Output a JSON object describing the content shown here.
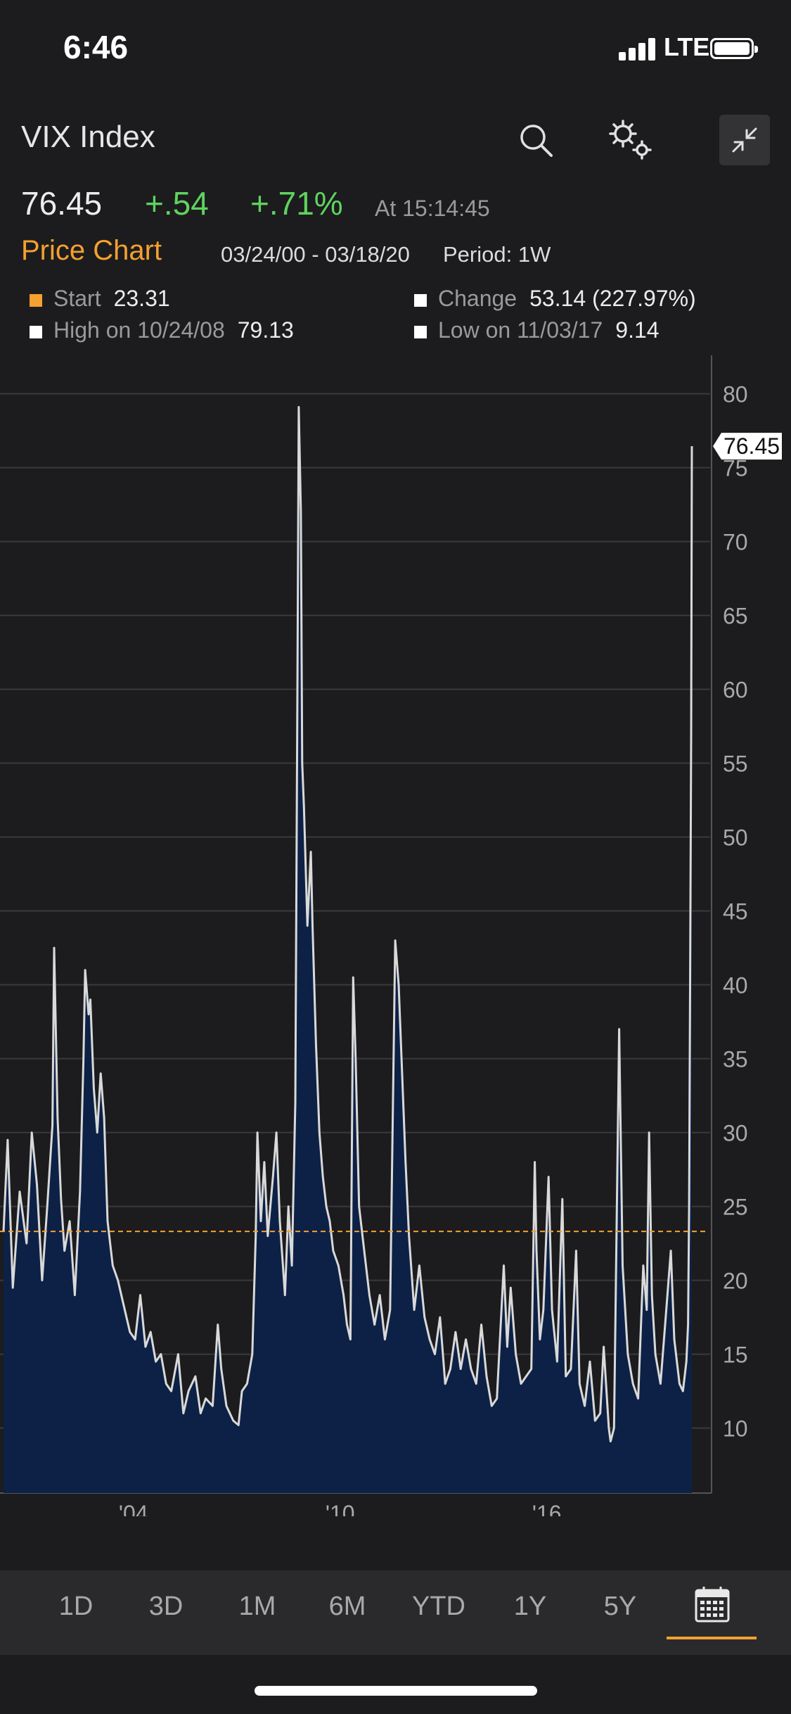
{
  "status_bar": {
    "time": "6:46",
    "network": "LTE"
  },
  "header": {
    "ticker": "VIX Index"
  },
  "quote": {
    "price": "76.45",
    "change": "+.54",
    "change_pct": "+.71%",
    "timestamp": "At 15:14:45"
  },
  "chart_header": {
    "title": "Price Chart",
    "date_range": "03/24/00 - 03/18/20",
    "period": "Period: 1W"
  },
  "legend": {
    "start_label": "Start",
    "start_value": "23.31",
    "change_label": "Change",
    "change_value": "53.14 (227.97%)",
    "high_label": "High on 10/24/08",
    "high_value": "79.13",
    "low_label": "Low on 11/03/17",
    "low_value": "9.14"
  },
  "colors": {
    "accent": "#f5a030",
    "positive": "#5fd35f",
    "area_fill": "#0d2146",
    "line": "#d9d9d9",
    "background": "#1c1c1e"
  },
  "chart_data": {
    "type": "area",
    "title": "",
    "xlabel": "",
    "ylabel": "",
    "x_ticks": [
      "'04",
      "'10",
      "'16"
    ],
    "y_ticks": [
      10,
      15,
      20,
      25,
      30,
      35,
      40,
      45,
      50,
      55,
      60,
      65,
      70,
      75,
      80
    ],
    "ylim": [
      5.6,
      82.6
    ],
    "grid": true,
    "reference_line": 23.31,
    "last_value_label": "76.45",
    "series": [
      {
        "values": [
          [
            2000.23,
            23.3
          ],
          [
            2000.35,
            29.5
          ],
          [
            2000.5,
            19.5
          ],
          [
            2000.7,
            26.0
          ],
          [
            2000.9,
            22.5
          ],
          [
            2001.05,
            30.0
          ],
          [
            2001.2,
            26.5
          ],
          [
            2001.35,
            20.0
          ],
          [
            2001.5,
            25.0
          ],
          [
            2001.65,
            30.5
          ],
          [
            2001.7,
            42.5
          ],
          [
            2001.8,
            31.0
          ],
          [
            2001.9,
            25.5
          ],
          [
            2002.0,
            22.0
          ],
          [
            2002.15,
            24.0
          ],
          [
            2002.3,
            19.0
          ],
          [
            2002.45,
            26.0
          ],
          [
            2002.55,
            35.0
          ],
          [
            2002.6,
            41.0
          ],
          [
            2002.7,
            38.0
          ],
          [
            2002.75,
            39.0
          ],
          [
            2002.85,
            33.0
          ],
          [
            2002.95,
            30.0
          ],
          [
            2003.05,
            34.0
          ],
          [
            2003.15,
            31.0
          ],
          [
            2003.25,
            24.0
          ],
          [
            2003.4,
            21.0
          ],
          [
            2003.55,
            20.0
          ],
          [
            2003.7,
            18.5
          ],
          [
            2003.9,
            16.5
          ],
          [
            2004.05,
            16.0
          ],
          [
            2004.2,
            19.0
          ],
          [
            2004.35,
            15.5
          ],
          [
            2004.5,
            16.5
          ],
          [
            2004.65,
            14.5
          ],
          [
            2004.8,
            15.0
          ],
          [
            2004.95,
            13.0
          ],
          [
            2005.1,
            12.5
          ],
          [
            2005.3,
            15.0
          ],
          [
            2005.45,
            11.0
          ],
          [
            2005.6,
            12.5
          ],
          [
            2005.8,
            13.5
          ],
          [
            2005.95,
            11.0
          ],
          [
            2006.1,
            12.0
          ],
          [
            2006.3,
            11.5
          ],
          [
            2006.45,
            17.0
          ],
          [
            2006.55,
            14.0
          ],
          [
            2006.7,
            11.5
          ],
          [
            2006.9,
            10.5
          ],
          [
            2007.05,
            10.2
          ],
          [
            2007.15,
            12.5
          ],
          [
            2007.3,
            13.0
          ],
          [
            2007.45,
            15.0
          ],
          [
            2007.55,
            23.0
          ],
          [
            2007.6,
            30.0
          ],
          [
            2007.7,
            24.0
          ],
          [
            2007.8,
            28.0
          ],
          [
            2007.9,
            23.0
          ],
          [
            2008.05,
            27.0
          ],
          [
            2008.15,
            30.0
          ],
          [
            2008.25,
            24.0
          ],
          [
            2008.4,
            19.0
          ],
          [
            2008.5,
            25.0
          ],
          [
            2008.6,
            21.0
          ],
          [
            2008.7,
            32.0
          ],
          [
            2008.76,
            60.0
          ],
          [
            2008.8,
            79.1
          ],
          [
            2008.86,
            72.0
          ],
          [
            2008.9,
            55.0
          ],
          [
            2008.95,
            52.0
          ],
          [
            2009.05,
            44.0
          ],
          [
            2009.15,
            49.0
          ],
          [
            2009.2,
            44.0
          ],
          [
            2009.3,
            36.0
          ],
          [
            2009.4,
            30.0
          ],
          [
            2009.5,
            27.0
          ],
          [
            2009.6,
            25.0
          ],
          [
            2009.7,
            24.0
          ],
          [
            2009.8,
            22.0
          ],
          [
            2009.95,
            21.0
          ],
          [
            2010.1,
            19.0
          ],
          [
            2010.2,
            17.0
          ],
          [
            2010.3,
            16.0
          ],
          [
            2010.38,
            40.5
          ],
          [
            2010.45,
            35.0
          ],
          [
            2010.55,
            25.0
          ],
          [
            2010.7,
            22.0
          ],
          [
            2010.85,
            19.0
          ],
          [
            2011.0,
            17.0
          ],
          [
            2011.15,
            19.0
          ],
          [
            2011.3,
            16.0
          ],
          [
            2011.45,
            18.0
          ],
          [
            2011.6,
            43.0
          ],
          [
            2011.7,
            40.0
          ],
          [
            2011.8,
            34.0
          ],
          [
            2011.9,
            28.0
          ],
          [
            2012.0,
            23.0
          ],
          [
            2012.15,
            18.0
          ],
          [
            2012.3,
            21.0
          ],
          [
            2012.45,
            17.5
          ],
          [
            2012.6,
            16.0
          ],
          [
            2012.75,
            15.0
          ],
          [
            2012.9,
            17.5
          ],
          [
            2013.05,
            13.0
          ],
          [
            2013.2,
            14.0
          ],
          [
            2013.35,
            16.5
          ],
          [
            2013.5,
            14.0
          ],
          [
            2013.65,
            16.0
          ],
          [
            2013.8,
            14.0
          ],
          [
            2013.95,
            13.0
          ],
          [
            2014.1,
            17.0
          ],
          [
            2014.25,
            13.5
          ],
          [
            2014.4,
            11.5
          ],
          [
            2014.55,
            12.0
          ],
          [
            2014.75,
            21.0
          ],
          [
            2014.85,
            15.5
          ],
          [
            2014.95,
            19.5
          ],
          [
            2015.1,
            15.0
          ],
          [
            2015.25,
            13.0
          ],
          [
            2015.4,
            13.5
          ],
          [
            2015.55,
            14.0
          ],
          [
            2015.65,
            28.0
          ],
          [
            2015.7,
            22.0
          ],
          [
            2015.8,
            16.0
          ],
          [
            2015.9,
            18.0
          ],
          [
            2016.05,
            27.0
          ],
          [
            2016.15,
            18.0
          ],
          [
            2016.3,
            14.5
          ],
          [
            2016.45,
            25.5
          ],
          [
            2016.55,
            13.5
          ],
          [
            2016.7,
            14.0
          ],
          [
            2016.85,
            22.0
          ],
          [
            2016.95,
            13.0
          ],
          [
            2017.1,
            11.5
          ],
          [
            2017.25,
            14.5
          ],
          [
            2017.4,
            10.5
          ],
          [
            2017.55,
            11.0
          ],
          [
            2017.65,
            15.5
          ],
          [
            2017.8,
            10.0
          ],
          [
            2017.85,
            9.1
          ],
          [
            2017.95,
            10.0
          ],
          [
            2018.1,
            37.0
          ],
          [
            2018.2,
            21.0
          ],
          [
            2018.35,
            15.0
          ],
          [
            2018.5,
            13.0
          ],
          [
            2018.65,
            12.0
          ],
          [
            2018.8,
            21.0
          ],
          [
            2018.9,
            18.0
          ],
          [
            2018.97,
            30.0
          ],
          [
            2019.05,
            19.0
          ],
          [
            2019.15,
            15.0
          ],
          [
            2019.3,
            13.0
          ],
          [
            2019.45,
            17.5
          ],
          [
            2019.6,
            22.0
          ],
          [
            2019.7,
            16.0
          ],
          [
            2019.85,
            13.0
          ],
          [
            2019.95,
            12.5
          ],
          [
            2020.05,
            14.5
          ],
          [
            2020.1,
            17.0
          ],
          [
            2020.13,
            25.0
          ],
          [
            2020.16,
            41.0
          ],
          [
            2020.19,
            57.0
          ],
          [
            2020.21,
            76.45
          ]
        ]
      }
    ]
  },
  "range_tabs": [
    "1D",
    "3D",
    "1M",
    "6M",
    "YTD",
    "1Y",
    "5Y"
  ],
  "icons": {
    "search": "search-icon",
    "settings": "settings-gears-icon",
    "collapse": "collapse-icon",
    "calendar": "calendar-icon"
  }
}
